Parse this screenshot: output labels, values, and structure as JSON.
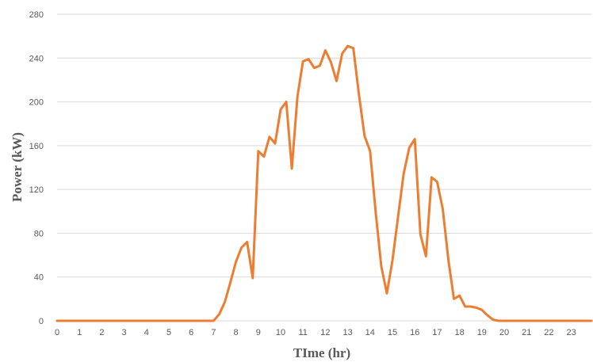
{
  "chart_data": {
    "type": "line",
    "title": "",
    "xlabel": "TIme (hr)",
    "ylabel": "Power (kW)",
    "xlim": [
      0,
      23.9
    ],
    "ylim": [
      0,
      280
    ],
    "x_ticks": [
      0,
      1,
      2,
      3,
      4,
      5,
      6,
      7,
      8,
      9,
      10,
      11,
      12,
      13,
      14,
      15,
      16,
      17,
      18,
      19,
      20,
      21,
      22,
      23
    ],
    "y_ticks": [
      0,
      40,
      80,
      120,
      160,
      200,
      240,
      280
    ],
    "grid": "horizontal",
    "series_color": "#ed7d31",
    "series": [
      {
        "name": "",
        "x": [
          0,
          7.0,
          7.25,
          7.5,
          7.75,
          8.0,
          8.25,
          8.5,
          8.75,
          9.0,
          9.25,
          9.5,
          9.75,
          10.0,
          10.25,
          10.5,
          10.75,
          11.0,
          11.25,
          11.5,
          11.75,
          12.0,
          12.25,
          12.5,
          12.75,
          13.0,
          13.25,
          13.5,
          13.75,
          14.0,
          14.25,
          14.5,
          14.75,
          15.0,
          15.25,
          15.5,
          15.75,
          16.0,
          16.25,
          16.5,
          16.75,
          17.0,
          17.25,
          17.5,
          17.75,
          18.0,
          18.25,
          18.5,
          18.75,
          19.0,
          19.25,
          19.5,
          19.75,
          20.0,
          23.9
        ],
        "y": [
          0,
          0,
          6,
          17,
          35,
          54,
          67,
          72,
          39,
          155,
          150,
          168,
          162,
          193,
          200,
          139,
          205,
          237,
          239,
          231,
          233,
          247,
          236,
          219,
          244,
          251,
          249,
          207,
          169,
          155,
          99,
          50,
          25,
          55,
          95,
          134,
          158,
          166,
          79,
          59,
          131,
          127,
          102,
          56,
          20,
          23,
          13,
          13,
          12,
          10,
          5,
          1,
          0,
          0,
          0
        ]
      }
    ]
  }
}
